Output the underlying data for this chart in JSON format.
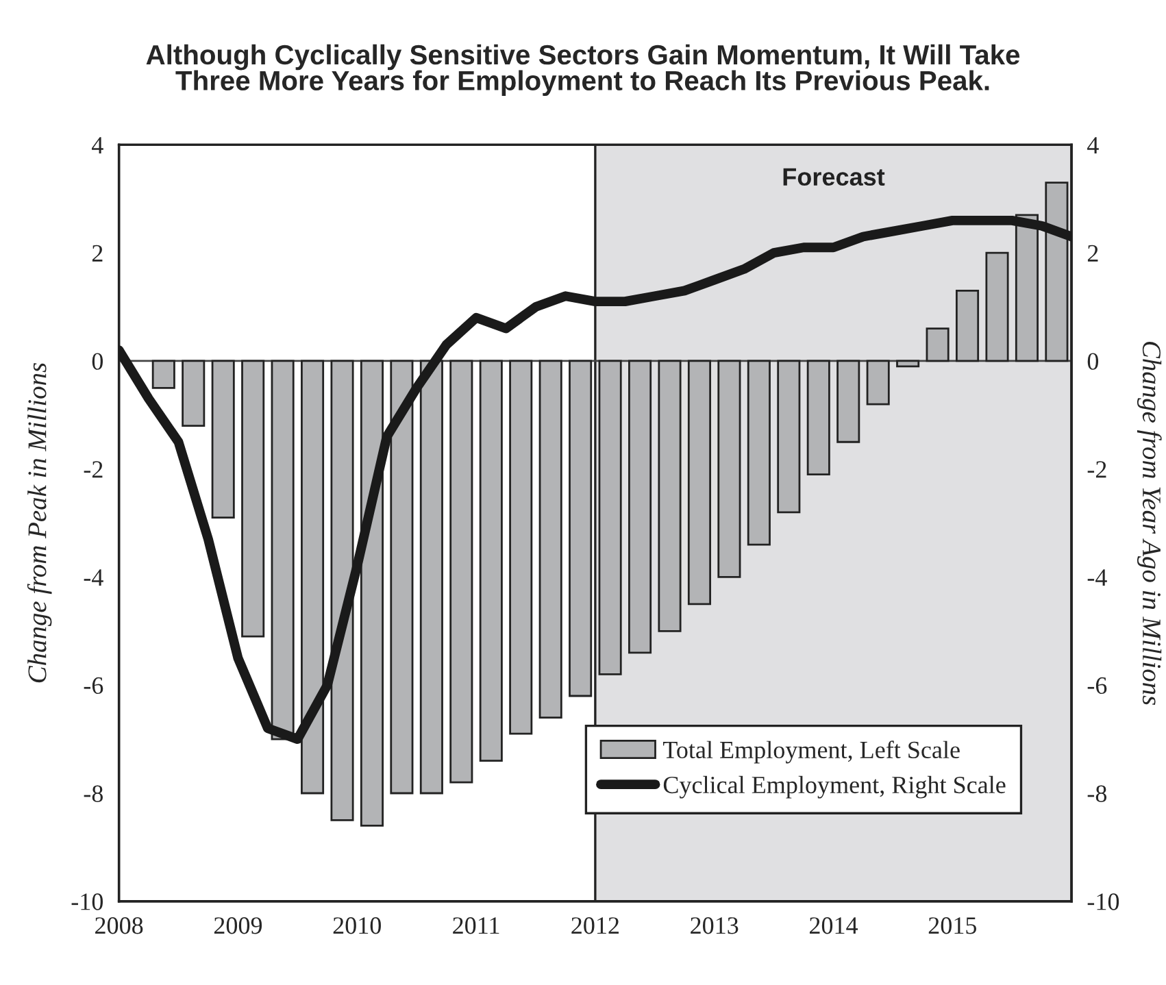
{
  "chart_data": {
    "type": "bar",
    "title": "Although Cyclically Sensitive Sectors Gain Momentum, It Will Take\nThree More Years for Employment to Reach Its Previous Peak.",
    "ylabel": "Change from Peak in Millions",
    "y2label": "Change from Year Ago in Millions",
    "xlim": [
      2008,
      2016
    ],
    "xticks": [
      2008,
      2009,
      2010,
      2011,
      2012,
      2013,
      2014,
      2015
    ],
    "ylim": [
      -10,
      4
    ],
    "yticks": [
      -10,
      -8,
      -6,
      -4,
      -2,
      0,
      2,
      4
    ],
    "y2lim": [
      -10,
      4
    ],
    "y2ticks": [
      -10,
      -8,
      -6,
      -4,
      -2,
      0,
      2,
      4
    ],
    "bands": [
      {
        "axis": "x",
        "from": 2012,
        "to": 2016,
        "label": "Forecast",
        "color": "#e0e0e2"
      }
    ],
    "legend": "bottom right",
    "ref_lines": [
      {
        "axis": "y",
        "value": 0,
        "color": "#444444"
      }
    ],
    "series": [
      {
        "name": "Total Employment, Left Scale",
        "color": "#b3b4b6",
        "x": [
          2008.375,
          2008.625,
          2008.875,
          2009.125,
          2009.375,
          2009.625,
          2009.875,
          2010.125,
          2010.375,
          2010.625,
          2010.875,
          2011.125,
          2011.375,
          2011.625,
          2011.875,
          2012.125,
          2012.375,
          2012.625,
          2012.875,
          2013.125,
          2013.375,
          2013.625,
          2013.875,
          2014.125,
          2014.375,
          2014.625,
          2014.875,
          2015.125,
          2015.375,
          2015.625,
          2015.875
        ],
        "values": [
          -0.5,
          -1.2,
          -2.9,
          -5.1,
          -7.0,
          -8.0,
          -8.5,
          -8.6,
          -8.0,
          -8.0,
          -7.8,
          -7.4,
          -6.9,
          -6.6,
          -6.2,
          -5.8,
          -5.4,
          -5.0,
          -4.5,
          -4.0,
          -3.4,
          -2.8,
          -2.1,
          -1.5,
          -0.8,
          -0.1,
          0.6,
          1.3,
          2.0,
          2.7,
          3.3
        ]
      },
      {
        "name": "Cyclical Employment, Right Scale",
        "type": "line",
        "axis": "y2",
        "color": "#1a1a1a",
        "marker": "none",
        "line_style": "solid",
        "x": [
          2008.0,
          2008.25,
          2008.5,
          2008.75,
          2009.0,
          2009.25,
          2009.5,
          2009.75,
          2010.0,
          2010.25,
          2010.5,
          2010.75,
          2011.0,
          2011.25,
          2011.5,
          2011.75,
          2012.0,
          2012.25,
          2012.5,
          2012.75,
          2013.0,
          2013.25,
          2013.5,
          2013.75,
          2014.0,
          2014.25,
          2014.5,
          2014.75,
          2015.0,
          2015.25,
          2015.5,
          2015.75,
          2016.0
        ],
        "values": [
          0.2,
          -0.7,
          -1.5,
          -3.3,
          -5.5,
          -6.8,
          -7.0,
          -6.0,
          -3.8,
          -1.4,
          -0.5,
          0.3,
          0.8,
          0.6,
          1.0,
          1.2,
          1.1,
          1.1,
          1.2,
          1.3,
          1.5,
          1.7,
          2.0,
          2.1,
          2.1,
          2.3,
          2.4,
          2.5,
          2.6,
          2.6,
          2.6,
          2.5,
          2.3
        ]
      }
    ]
  }
}
